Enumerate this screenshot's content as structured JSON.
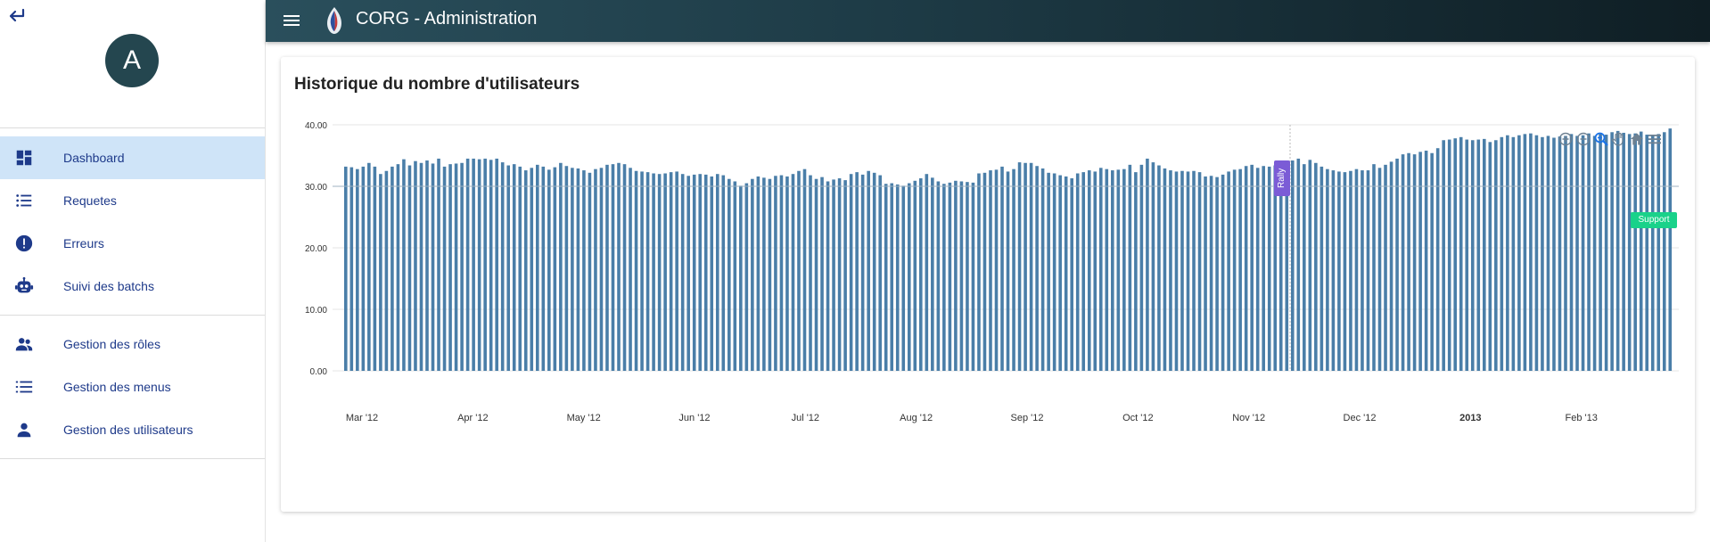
{
  "sidebar": {
    "avatar_letter": "A",
    "items": [
      {
        "label": "Dashboard",
        "icon": "dashboard-icon",
        "active": true
      },
      {
        "label": "Requetes",
        "icon": "list-icon"
      },
      {
        "label": "Erreurs",
        "icon": "error-icon"
      },
      {
        "label": "Suivi des batchs",
        "icon": "robot-icon"
      },
      {
        "label": "Gestion des rôles",
        "icon": "people-icon"
      },
      {
        "label": "Gestion des menus",
        "icon": "menu-list-icon"
      },
      {
        "label": "Gestion des utilisateurs",
        "icon": "person-icon"
      }
    ]
  },
  "topbar": {
    "title": "CORG - Administration"
  },
  "card": {
    "title": "Historique du nombre d'utilisateurs"
  },
  "chart_data": {
    "type": "bar",
    "ylim": [
      0,
      40
    ],
    "yticks": [
      "0.00",
      "10.00",
      "20.00",
      "30.00",
      "40.00"
    ],
    "xtick_labels": [
      {
        "label": "Mar '12",
        "month_index": 0
      },
      {
        "label": "Apr '12",
        "month_index": 1
      },
      {
        "label": "May '12",
        "month_index": 2
      },
      {
        "label": "Jun '12",
        "month_index": 3
      },
      {
        "label": "Jul '12",
        "month_index": 4
      },
      {
        "label": "Aug '12",
        "month_index": 5
      },
      {
        "label": "Sep '12",
        "month_index": 6
      },
      {
        "label": "Oct '12",
        "month_index": 7
      },
      {
        "label": "Nov '12",
        "month_index": 8
      },
      {
        "label": "Dec '12",
        "month_index": 9
      },
      {
        "label": "2013",
        "month_index": 10,
        "bold": true
      },
      {
        "label": "Feb '13",
        "month_index": 11
      }
    ],
    "series": [
      {
        "color": "#4a7ea8",
        "values": [
          33.2,
          33.1,
          32.8,
          33.2,
          33.8,
          33.2,
          32.0,
          32.5,
          33.2,
          33.6,
          34.4,
          33.4,
          34.1,
          33.8,
          34.2,
          33.7,
          34.5,
          33.2,
          33.6,
          33.7,
          33.8,
          34.5,
          34.5,
          34.4,
          34.5,
          34.3,
          34.5,
          33.9,
          33.4,
          33.6,
          33.2,
          32.6,
          33.0,
          33.5,
          33.2,
          32.7,
          33.1,
          33.8,
          33.3,
          33.0,
          32.9,
          32.6,
          32.2,
          32.8,
          33.0,
          33.5,
          33.6,
          33.8,
          33.6,
          33.0,
          32.5,
          32.4,
          32.3,
          32.1,
          32.0,
          32.1,
          32.3,
          32.4,
          32.0,
          31.7,
          31.9,
          32.0,
          31.9,
          31.6,
          32.0,
          31.8,
          31.2,
          30.8,
          30.1,
          30.5,
          31.2,
          31.6,
          31.4,
          31.2,
          31.7,
          31.8,
          31.6,
          32.0,
          32.5,
          32.8,
          31.8,
          31.2,
          31.5,
          30.8,
          31.1,
          31.3,
          31.0,
          32.0,
          32.3,
          31.9,
          32.5,
          32.2,
          31.8,
          30.4,
          30.5,
          30.3,
          30.1,
          30.5,
          30.9,
          31.3,
          32.0,
          31.4,
          30.8,
          30.4,
          30.6,
          30.9,
          30.8,
          30.7,
          30.6,
          32.1,
          32.2,
          32.6,
          32.7,
          33.2,
          32.4,
          32.8,
          33.9,
          33.8,
          33.8,
          33.3,
          32.9,
          32.2,
          32.1,
          31.8,
          31.6,
          31.3,
          32.1,
          32.3,
          32.6,
          32.4,
          33.0,
          32.8,
          32.6,
          32.7,
          32.8,
          33.5,
          32.3,
          33.5,
          34.5,
          33.9,
          33.4,
          32.9,
          32.6,
          32.4,
          32.5,
          32.4,
          32.5,
          32.3,
          31.6,
          31.7,
          31.5,
          31.9,
          32.4,
          32.7,
          32.8,
          33.3,
          33.5,
          33.0,
          33.3,
          33.2,
          33.4,
          34.0,
          33.1,
          34.2,
          34.5,
          33.6,
          34.3,
          33.8,
          33.2,
          32.8,
          32.6,
          32.4,
          32.3,
          32.5,
          32.8,
          32.6,
          32.6,
          33.6,
          33.0,
          33.5,
          34.0,
          34.5,
          35.2,
          35.4,
          35.2,
          35.6,
          35.8,
          35.4,
          36.2,
          37.5,
          37.6,
          37.8,
          38.0,
          37.6,
          37.5,
          37.6,
          37.7,
          37.2,
          37.5,
          38.0,
          38.3,
          38.0,
          38.3,
          38.5,
          38.6,
          38.3,
          38.0,
          38.2,
          37.9,
          38.1,
          38.2,
          38.5,
          38.2,
          38.3,
          38.6,
          38.2,
          38.6,
          38.4,
          38.8,
          39.0,
          38.7,
          38.5,
          38.6,
          38.9,
          38.4,
          38.2,
          38.5,
          38.8,
          39.4
        ]
      }
    ],
    "annotations": [
      {
        "axis": "x",
        "label": "Rally",
        "color": "#7b5cd6"
      },
      {
        "axis": "y",
        "label": "Support",
        "y": 30,
        "color": "#19d28a"
      }
    ]
  }
}
